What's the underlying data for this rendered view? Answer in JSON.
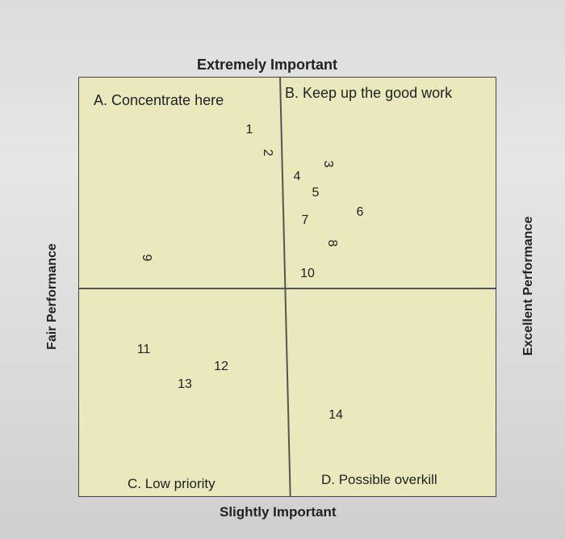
{
  "axes": {
    "top": "Extremely Important",
    "bottom": "Slightly Important",
    "left": "Fair Performance",
    "right": "Excellent Performance"
  },
  "quadrants": {
    "a": "A. Concentrate here",
    "b": "B. Keep up the good work",
    "c": "C. Low priority",
    "d": "D. Possible overkill"
  },
  "points": [
    "1",
    "2",
    "3",
    "4",
    "5",
    "6",
    "7",
    "8",
    "9",
    "10",
    "11",
    "12",
    "13",
    "14"
  ]
}
